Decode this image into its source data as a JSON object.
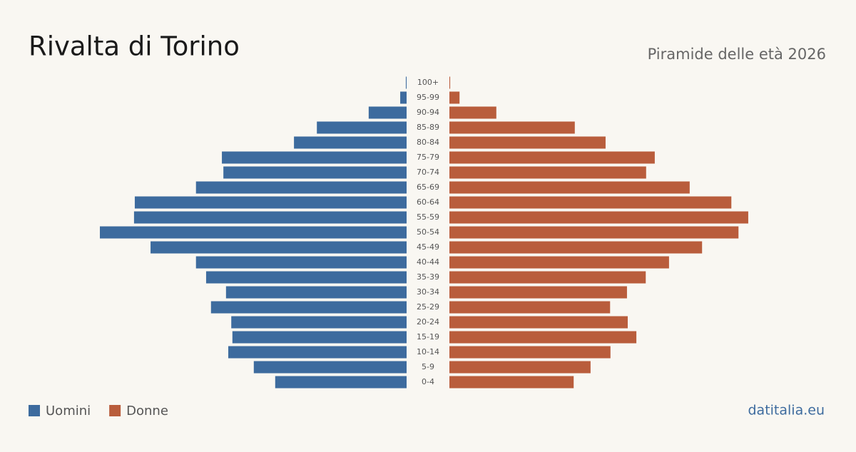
{
  "chart_data": {
    "type": "pyramid",
    "title": "Rivalta di Torino",
    "subtitle": "Piramide delle età 2026",
    "categories": [
      "100+",
      "95-99",
      "90-94",
      "85-89",
      "80-84",
      "75-79",
      "70-74",
      "65-69",
      "60-64",
      "55-59",
      "50-54",
      "45-49",
      "40-44",
      "35-39",
      "30-34",
      "25-29",
      "20-24",
      "15-19",
      "10-14",
      "5-9",
      "0-4"
    ],
    "series": [
      {
        "name": "Uomini",
        "color": "#3d6b9e",
        "values": [
          2,
          17,
          101,
          239,
          300,
          492,
          488,
          561,
          724,
          726,
          817,
          682,
          561,
          534,
          481,
          521,
          467,
          464,
          475,
          407,
          350
        ]
      },
      {
        "name": "Donne",
        "color": "#b95d3c",
        "values": [
          2,
          27,
          125,
          334,
          416,
          547,
          524,
          640,
          751,
          796,
          770,
          673,
          585,
          523,
          473,
          428,
          475,
          498,
          429,
          376,
          331
        ]
      }
    ],
    "source": "datitalia.eu"
  }
}
